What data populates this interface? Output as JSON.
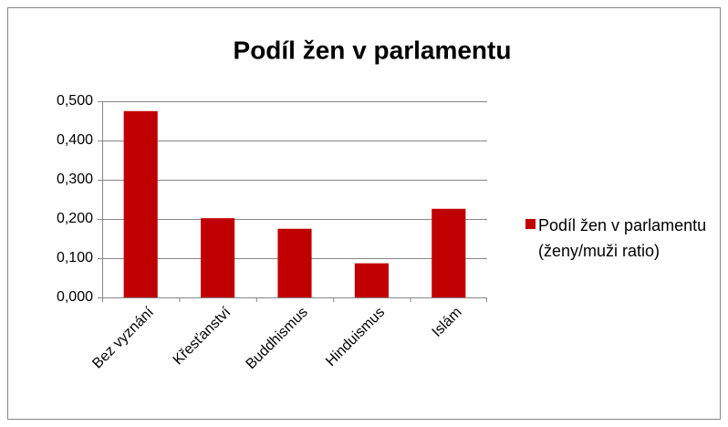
{
  "chart_data": {
    "type": "bar",
    "title": "Podíl žen v parlamentu",
    "categories": [
      "Bez vyznání",
      "Křesťanství",
      "Buddhismus",
      "Hinduismus",
      "Islám"
    ],
    "series": [
      {
        "name": "Podíl žen v parlamentu (ženy/muži ratio)",
        "color": "#c00000",
        "values": [
          0.475,
          0.202,
          0.175,
          0.087,
          0.226
        ]
      }
    ],
    "ylim": [
      0,
      0.5
    ],
    "yticks": [
      {
        "value": 0,
        "label": "0,000"
      },
      {
        "value": 0.1,
        "label": "0,100"
      },
      {
        "value": 0.2,
        "label": "0,200"
      },
      {
        "value": 0.3,
        "label": "0,300"
      },
      {
        "value": 0.4,
        "label": "0,400"
      },
      {
        "value": 0.5,
        "label": "0,500"
      }
    ],
    "grid": true,
    "legend": "right"
  }
}
